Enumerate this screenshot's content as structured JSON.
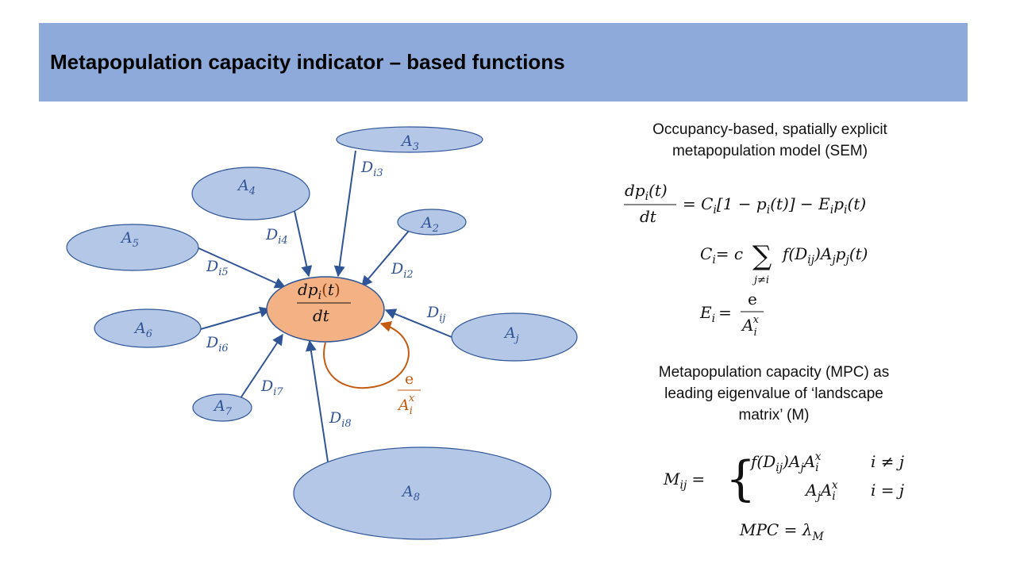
{
  "title": "Metapopulation capacity indicator – based functions",
  "diagram": {
    "center_num": "dp",
    "center_sub": "i",
    "center_paren_open": "(",
    "center_t": "t",
    "center_paren_close": ")",
    "center_den": "dt",
    "patches": [
      {
        "base": "A",
        "sub": "3"
      },
      {
        "base": "A",
        "sub": "4"
      },
      {
        "base": "A",
        "sub": "2"
      },
      {
        "base": "A",
        "sub": "5"
      },
      {
        "base": "A",
        "sub": "6"
      },
      {
        "base": "A",
        "sub": "j"
      },
      {
        "base": "A",
        "sub": "7"
      },
      {
        "base": "A",
        "sub": "8"
      }
    ],
    "distances": [
      {
        "base": "D",
        "sub": "i3"
      },
      {
        "base": "D",
        "sub": "i4"
      },
      {
        "base": "D",
        "sub": "i2"
      },
      {
        "base": "D",
        "sub": "i5"
      },
      {
        "base": "D",
        "sub": "ij"
      },
      {
        "base": "D",
        "sub": "i6"
      },
      {
        "base": "D",
        "sub": "i7"
      },
      {
        "base": "D",
        "sub": "i8"
      }
    ],
    "extinction_num": "e",
    "extinction_base": "A",
    "extinction_sub": "i",
    "extinction_sup": "x"
  },
  "sem": {
    "heading_line1": "Occupancy-based, spatially explicit",
    "heading_line2": "metapopulation model (SEM)",
    "eq1_lhs_num": "dp",
    "eq1_lhs_sub": "i",
    "eq1_lhs_t": "(t)",
    "eq1_lhs_den": "dt",
    "eq1_rhs_c": "= C",
    "eq1_rhs_c_sub": "i",
    "eq1_rhs_bracket": "[1 − p",
    "eq1_rhs_p_sub": "i",
    "eq1_rhs_bracket_end": "(t)] − E",
    "eq1_rhs_e_sub": "i",
    "eq1_rhs_p2": "p",
    "eq1_rhs_p2_sub": "i",
    "eq1_rhs_end": "(t)",
    "eq2_lhs": "C",
    "eq2_lhs_sub": "i",
    "eq2_eq": "= c",
    "eq2_sigma": "∑",
    "eq2_sigma_sub": "j≠i",
    "eq2_body": "f(D",
    "eq2_body_sub": "ij",
    "eq2_body2": ")A",
    "eq2_body2_sub": "j",
    "eq2_body3": "p",
    "eq2_body3_sub": "j",
    "eq2_body_end": "(t)",
    "eq3_lhs": "E",
    "eq3_lhs_sub": "i",
    "eq3_eq": "=",
    "eq3_num": "e",
    "eq3_den": "A",
    "eq3_den_sub": "i",
    "eq3_den_sup": "x"
  },
  "mpc": {
    "heading_line1": "Metapopulation capacity (MPC) as",
    "heading_line2": "leading eigenvalue of ‘landscape",
    "heading_line3": "matrix’ (M)",
    "m_lhs": "M",
    "m_lhs_sub": "ij",
    "m_eq": "=",
    "case1_expr": "f(D",
    "case1_sub": "ij",
    "case1_expr2": ")A",
    "case1_sub2": "j",
    "case1_expr3": "A",
    "case1_sub3": "i",
    "case1_sup3": "x",
    "case1_cond": "i ≠ j",
    "case2_expr": "A",
    "case2_sub": "j",
    "case2_expr2": "A",
    "case2_sub2": "i",
    "case2_sup2": "x",
    "case2_cond": "i = j",
    "final_lhs": "MPC = λ",
    "final_sub": "M"
  },
  "colors": {
    "title_bar": "#8eaadb",
    "patch_fill": "#b4c7e7",
    "patch_stroke": "#2f5597",
    "arrow": "#2f5597",
    "label_blue": "#2f5597",
    "center_fill": "#f4b183",
    "center_stroke": "#2f5597",
    "extinction": "#c55a11",
    "text": "#111111"
  }
}
